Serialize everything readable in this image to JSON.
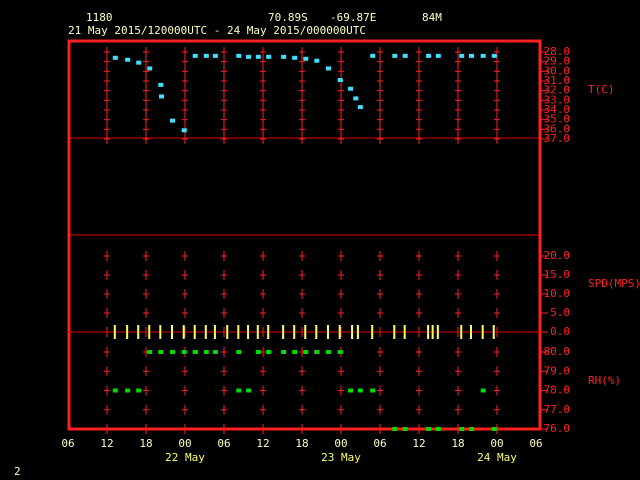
{
  "chart_data": {
    "type": "meteogram",
    "station": "1180",
    "lat": "70.89S",
    "lon": "-69.87E",
    "elev": "84M",
    "title": "21 May 2015/120000UTC - 24 May 2015/000000UTC",
    "xlim": [
      0,
      72
    ],
    "xticks": [
      {
        "value": 0,
        "label": "06"
      },
      {
        "value": 6,
        "label": "12"
      },
      {
        "value": 12,
        "label": "18"
      },
      {
        "value": 18,
        "label": "00"
      },
      {
        "value": 24,
        "label": "06"
      },
      {
        "value": 30,
        "label": "12"
      },
      {
        "value": 36,
        "label": "18"
      },
      {
        "value": 42,
        "label": "00"
      },
      {
        "value": 48,
        "label": "06"
      },
      {
        "value": 54,
        "label": "12"
      },
      {
        "value": 60,
        "label": "18"
      },
      {
        "value": 66,
        "label": "00"
      },
      {
        "value": 72,
        "label": "06"
      }
    ],
    "date_labels": [
      {
        "value": 18,
        "label": "22 May"
      },
      {
        "value": 42,
        "label": "23 May"
      },
      {
        "value": 66,
        "label": "24 May"
      }
    ],
    "grid": true,
    "series": [
      {
        "name": "T(C)",
        "color": "#40e0ff",
        "marker": "square",
        "ylim": [
          -37,
          -28
        ],
        "yticks": [
          {
            "value": -28,
            "label": "-28.0"
          },
          {
            "value": -29,
            "label": "-29.0"
          },
          {
            "value": -30,
            "label": "-30.0"
          },
          {
            "value": -31,
            "label": "-31.0"
          },
          {
            "value": -32,
            "label": "-32.0"
          },
          {
            "value": -33,
            "label": "-33.0"
          },
          {
            "value": -34,
            "label": "-34.0"
          },
          {
            "value": -35,
            "label": "-35.0"
          },
          {
            "value": -36,
            "label": "-36.0"
          },
          {
            "value": -37,
            "label": "-37.0"
          }
        ],
        "x": [
          7.2,
          9.1,
          10.8,
          12.5,
          14.2,
          14.3,
          16,
          17.8,
          19.5,
          21.2,
          22.6,
          26.2,
          27.7,
          29.2,
          30.8,
          33.1,
          34.8,
          36.5,
          38.2,
          40,
          41.8,
          43.4,
          44.2,
          44.9,
          46.8,
          50.2,
          51.8,
          55.4,
          56.9,
          60.5,
          62,
          63.8,
          65.5
        ],
        "values": [
          -28.6,
          -28.8,
          -29.1,
          -29.7,
          -31.4,
          -32.6,
          -35.1,
          -36.1,
          -28.4,
          -28.4,
          -28.4,
          -28.4,
          -28.5,
          -28.5,
          -28.5,
          -28.5,
          -28.6,
          -28.7,
          -28.9,
          -29.7,
          -30.9,
          -31.8,
          -32.8,
          -33.7,
          -28.4,
          -28.4,
          -28.4,
          -28.4,
          -28.4,
          -28.4,
          -28.4,
          -28.4,
          -28.4
        ]
      },
      {
        "name": "SPD(MPS)",
        "color": "#ffff60",
        "marker": "bar",
        "ylim": [
          0,
          20
        ],
        "yticks": [
          {
            "value": 20,
            "label": "20.0"
          },
          {
            "value": 15,
            "label": "15.0"
          },
          {
            "value": 10,
            "label": "10.0"
          },
          {
            "value": 5,
            "label": "5.0"
          },
          {
            "value": 0,
            "label": "0.0"
          }
        ],
        "x": [
          7.2,
          9.1,
          10.8,
          12.5,
          14.2,
          16,
          17.8,
          19.5,
          21.2,
          22.6,
          24.5,
          26.2,
          27.7,
          29.2,
          30.8,
          33.1,
          34.8,
          36.5,
          38.2,
          40,
          41.8,
          43.7,
          44.6,
          46.8,
          50.2,
          51.8,
          55.4,
          56.1,
          56.9,
          60.5,
          62,
          63.8,
          65.5
        ],
        "values": [
          0,
          0,
          0,
          0,
          0,
          0,
          0,
          0,
          0,
          0,
          0,
          0,
          0,
          0,
          0,
          0,
          0,
          0,
          0,
          0,
          0,
          0,
          0,
          0,
          0,
          0,
          0,
          0,
          0,
          0,
          0,
          0,
          0
        ]
      },
      {
        "name": "RH(%)",
        "color": "#00dd00",
        "marker": "square",
        "ylim": [
          76,
          80
        ],
        "yticks": [
          {
            "value": 80,
            "label": "80.0"
          },
          {
            "value": 79,
            "label": "79.0"
          },
          {
            "value": 78,
            "label": "78.0"
          },
          {
            "value": 77,
            "label": "77.0"
          },
          {
            "value": 76,
            "label": "76.0"
          }
        ],
        "x": [
          7.2,
          9.1,
          10.8,
          12.5,
          14.2,
          16,
          17.8,
          19.5,
          21.2,
          22.6,
          26.2,
          27.7,
          26.2,
          29.2,
          30.8,
          33.1,
          34.8,
          36.5,
          38.2,
          40,
          41.8,
          43.4,
          44.9,
          46.8,
          50.2,
          51.8,
          55.4,
          56.9,
          60.5,
          62,
          63.8,
          65.5
        ],
        "values": [
          78,
          78,
          78,
          80,
          80,
          80,
          80,
          80,
          80,
          80,
          78,
          78,
          80,
          80,
          80,
          80,
          80,
          80,
          80,
          80,
          80,
          78,
          78,
          78,
          76,
          76,
          76,
          76,
          76,
          76,
          78,
          76
        ]
      }
    ]
  },
  "footer": {
    "page": "2"
  }
}
